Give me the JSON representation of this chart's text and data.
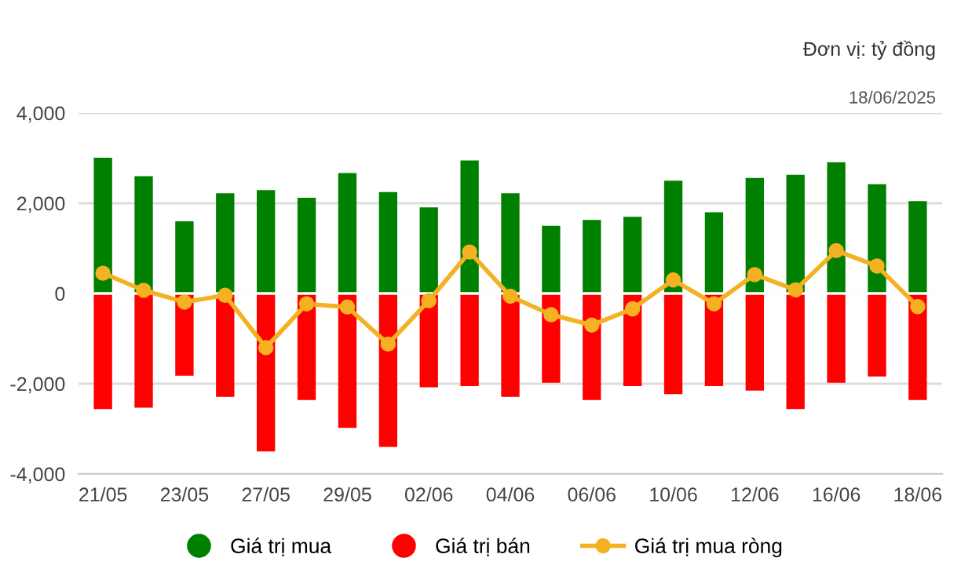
{
  "chart_data": {
    "type": "bar",
    "subtitle": "Đơn vị: tỷ đồng",
    "annotations": [
      "18/06/2025"
    ],
    "categories": [
      "21/05",
      null,
      "23/05",
      null,
      "27/05",
      null,
      "29/05",
      null,
      "02/06",
      null,
      "04/06",
      null,
      "06/06",
      null,
      "10/06",
      null,
      "12/06",
      null,
      "16/06",
      null,
      "18/06"
    ],
    "stacked": true,
    "series": [
      {
        "name": "Giá trị mua",
        "color": "#008000",
        "values": [
          3010,
          2600,
          1600,
          2220,
          2290,
          2120,
          2670,
          2250,
          1910,
          2950,
          2220,
          1500,
          1630,
          1700,
          2500,
          1800,
          2560,
          2630,
          2910,
          2420,
          2050
        ]
      },
      {
        "name": "Giá trị bán",
        "color": "#ff0000",
        "values": [
          -2560,
          -2530,
          -1820,
          -2290,
          -3500,
          -2360,
          -2980,
          -3400,
          -2080,
          -2050,
          -2290,
          -1980,
          -2360,
          -2050,
          -2230,
          -2050,
          -2150,
          -2560,
          -1980,
          -1840,
          -2360
        ]
      },
      {
        "name": "Giá trị mua ròng",
        "type": "line",
        "color": "#f4b223",
        "marker": "circle",
        "values": [
          450,
          70,
          -190,
          -40,
          -1200,
          -230,
          -300,
          -1120,
          -160,
          920,
          -60,
          -470,
          -700,
          -340,
          300,
          -230,
          420,
          80,
          950,
          610,
          -290
        ]
      }
    ],
    "ylim": [
      -4000,
      4000
    ],
    "yticks": [
      {
        "value": -4000,
        "label": "-4,000"
      },
      {
        "value": -2000,
        "label": "-2,000"
      },
      0,
      {
        "value": 2000,
        "label": "2,000"
      },
      {
        "value": 4000,
        "label": "4,000"
      }
    ],
    "grid": "y",
    "legend": "bottom"
  }
}
